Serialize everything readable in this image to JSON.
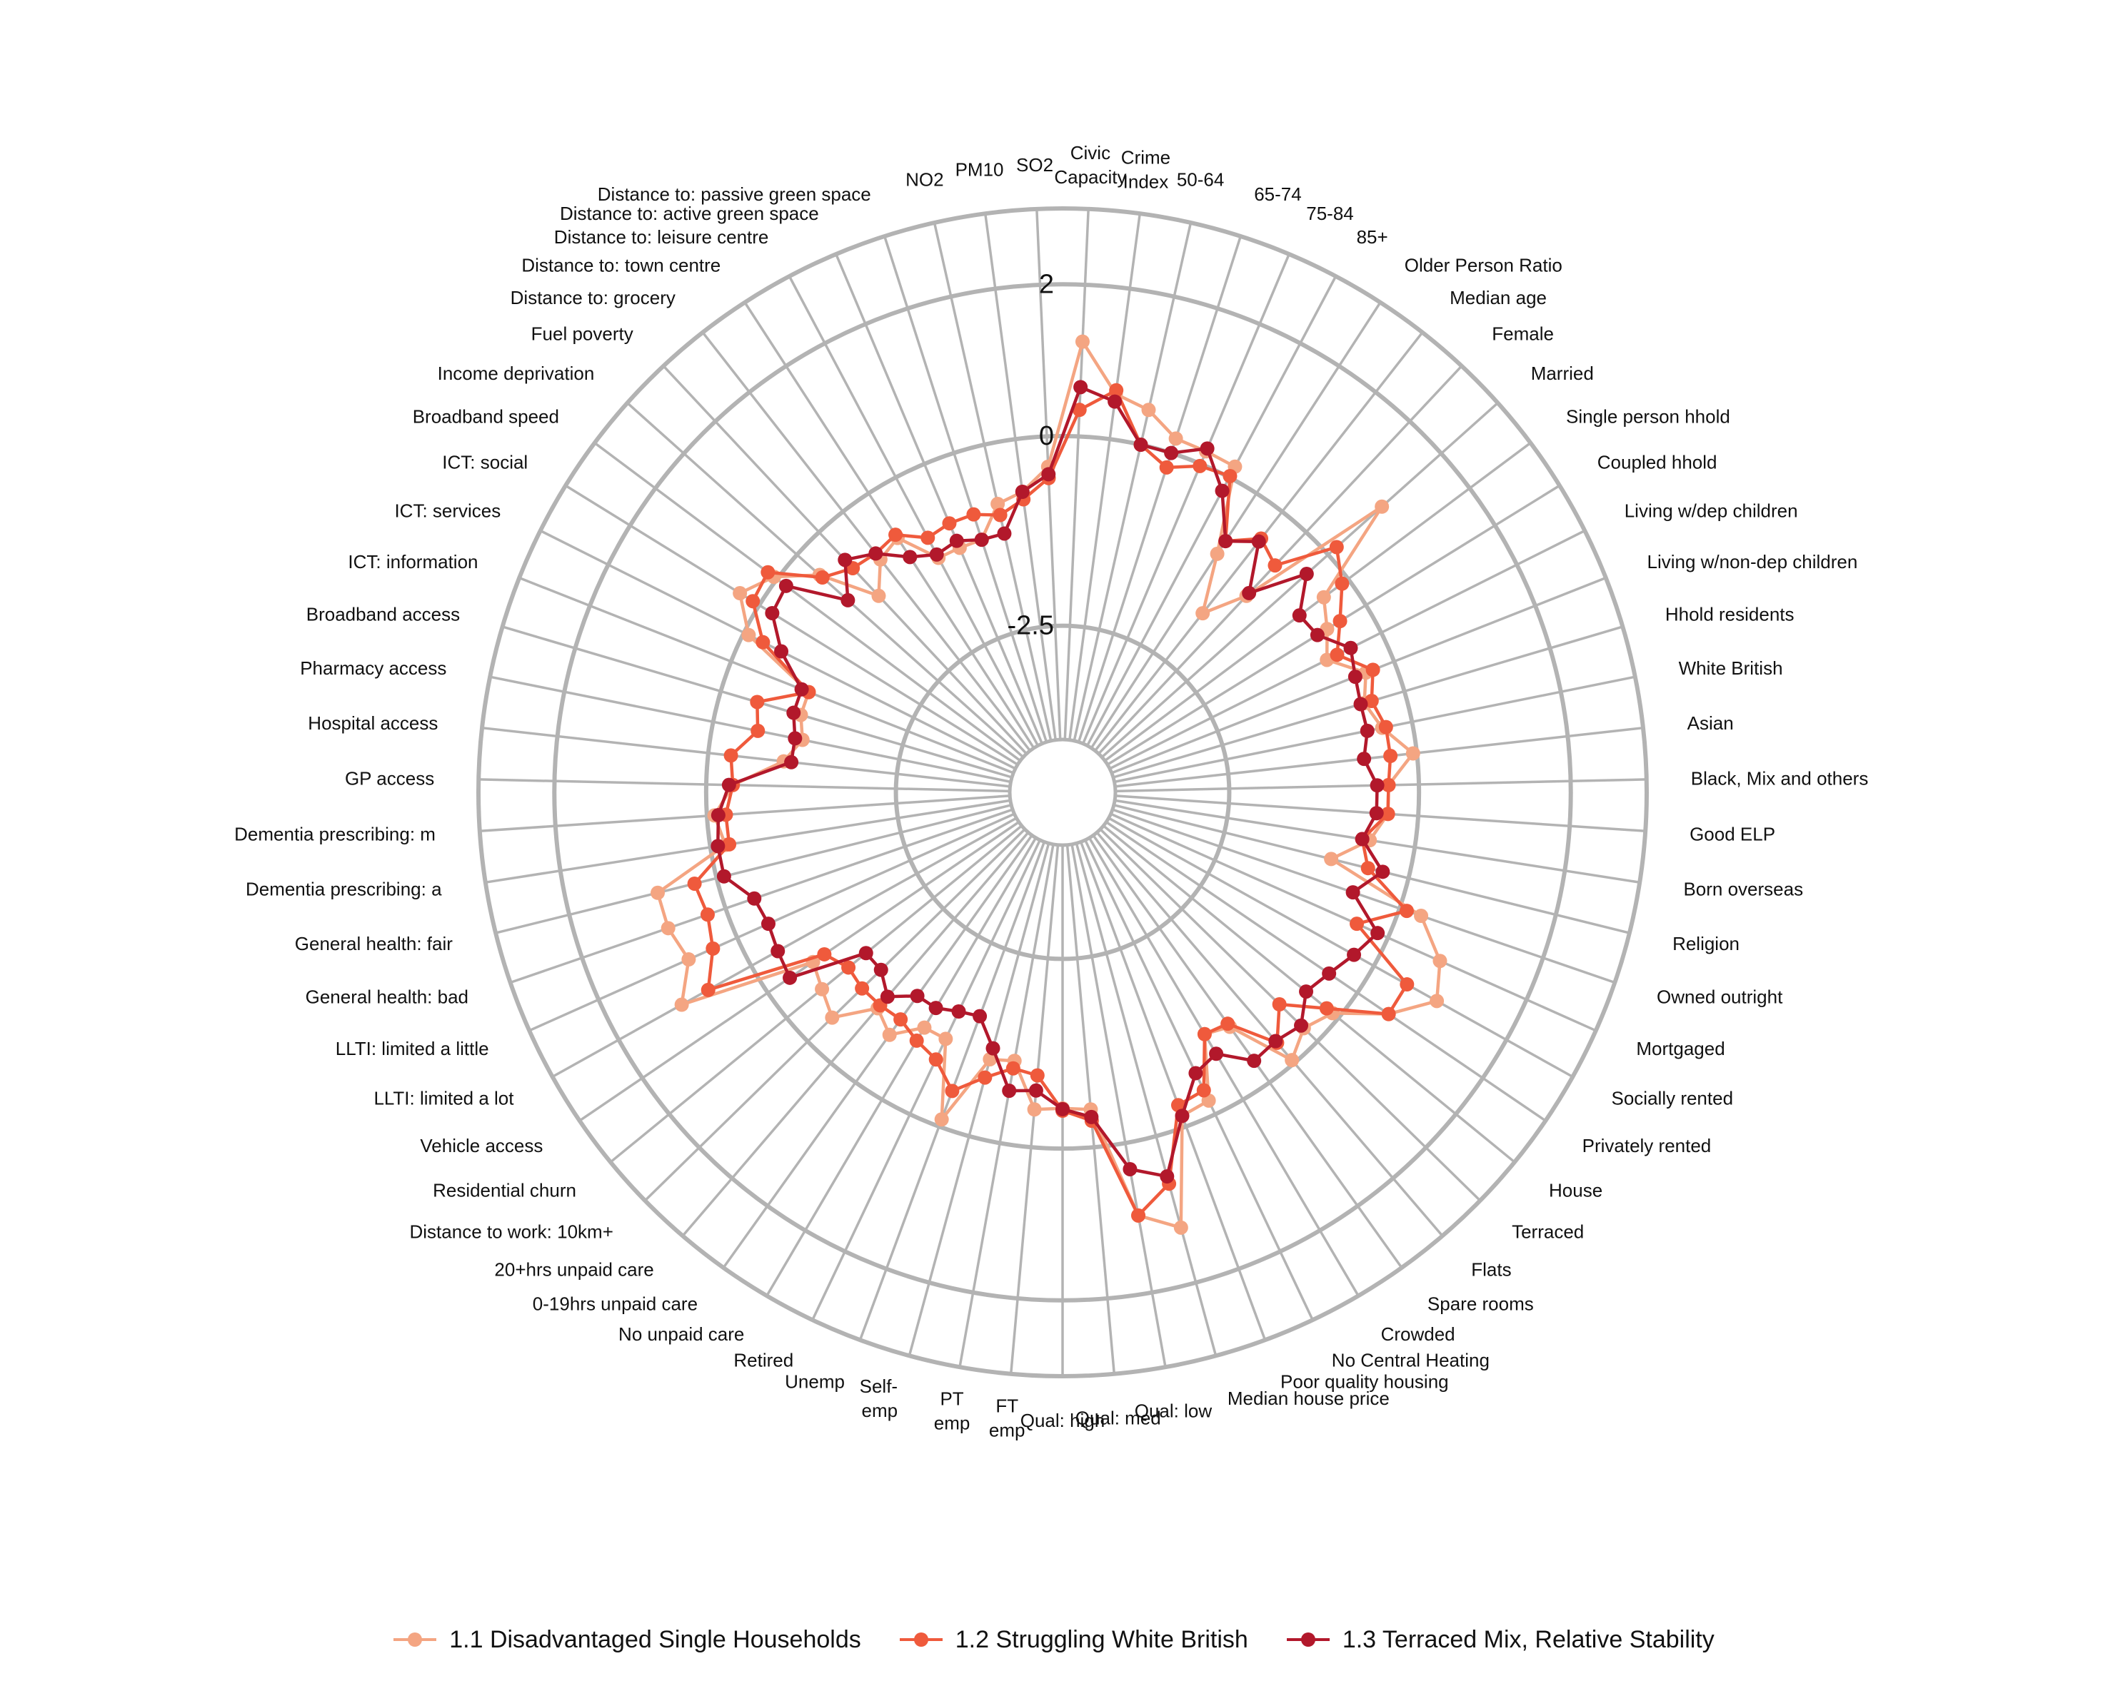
{
  "chart_data": {
    "type": "radar",
    "title": "",
    "rings": [
      {
        "value": 2,
        "label": "2"
      },
      {
        "value": 0,
        "label": "0"
      },
      {
        "value": -2.5,
        "label": "-2.5"
      }
    ],
    "rlim": [
      -4,
      3
    ],
    "grid": true,
    "legend_position": "bottom",
    "categories": [
      [
        "Civic",
        "Capacity"
      ],
      [
        "Crime",
        "Index"
      ],
      [
        "50-64"
      ],
      [
        "65-74"
      ],
      [
        "75-84"
      ],
      [
        "85+"
      ],
      [
        "Older Person Ratio"
      ],
      [
        "Median age"
      ],
      [
        "Female"
      ],
      [
        "Married"
      ],
      [
        "Single person hhold"
      ],
      [
        "Coupled hhold"
      ],
      [
        "Living w/dep children"
      ],
      [
        "Living w/non-dep children"
      ],
      [
        "Hhold residents"
      ],
      [
        "White British"
      ],
      [
        "Asian"
      ],
      [
        "Black, Mix and others"
      ],
      [
        "Good ELP"
      ],
      [
        "Born overseas"
      ],
      [
        "Religion"
      ],
      [
        "Owned outright"
      ],
      [
        "Mortgaged"
      ],
      [
        "Socially rented"
      ],
      [
        "Privately rented"
      ],
      [
        "House"
      ],
      [
        "Terraced"
      ],
      [
        "Flats"
      ],
      [
        "Spare rooms"
      ],
      [
        "Crowded"
      ],
      [
        "No Central Heating"
      ],
      [
        "Poor quality housing"
      ],
      [
        "Median house price"
      ],
      [
        "Qual: low"
      ],
      [
        "Qual: med"
      ],
      [
        "Qual: high"
      ],
      [
        "FT",
        "emp"
      ],
      [
        "PT",
        "emp"
      ],
      [
        "Self-",
        "emp"
      ],
      [
        "Unemp"
      ],
      [
        "Retired"
      ],
      [
        "No unpaid care"
      ],
      [
        "0-19hrs unpaid care"
      ],
      [
        "20+hrs unpaid care"
      ],
      [
        "Distance to work: 10km+"
      ],
      [
        "Residential churn"
      ],
      [
        "Vehicle access"
      ],
      [
        "LLTI: limited a lot"
      ],
      [
        "LLTI: limited a little"
      ],
      [
        "General health: bad"
      ],
      [
        "General health: fair"
      ],
      [
        "Dementia prescribing: a"
      ],
      [
        "Dementia prescribing: m"
      ],
      [
        "GP access"
      ],
      [
        "Hospital access"
      ],
      [
        "Pharmacy access"
      ],
      [
        "Broadband access"
      ],
      [
        "ICT: information"
      ],
      [
        "ICT: services"
      ],
      [
        "ICT: social"
      ],
      [
        "Broadband speed"
      ],
      [
        "Income deprivation"
      ],
      [
        "Fuel poverty"
      ],
      [
        "Distance to: grocery"
      ],
      [
        "Distance to: town centre"
      ],
      [
        "Distance to: leisure centre"
      ],
      [
        "Distance to: active green space"
      ],
      [
        "Distance to: passive green space"
      ],
      [
        "NO2"
      ],
      [
        "PM10"
      ],
      [
        "SO2"
      ]
    ],
    "series": [
      {
        "name": "1.1 Disadvantaged Single Households",
        "color": "#f4a582",
        "values": [
          1.25,
          0.6,
          0.47,
          0.2,
          0.18,
          0.16,
          -0.95,
          -1.7,
          -1.15,
          0.95,
          -0.4,
          -0.6,
          -0.8,
          -0.4,
          -0.55,
          -0.4,
          -0.05,
          -0.4,
          -0.4,
          -0.6,
          -1.05,
          0.3,
          0.75,
          0.95,
          0.5,
          -0.1,
          -0.25,
          -0.05,
          -0.9,
          -1.0,
          -0.2,
          -0.15,
          1.25,
          0.97,
          -0.5,
          -0.53,
          -0.5,
          -1.1,
          -1.05,
          -0.1,
          -1.1,
          -1.1,
          -0.77,
          -0.95,
          -0.45,
          -0.6,
          -0.72,
          1.05,
          0.7,
          0.8,
          0.8,
          -0.2,
          -0.1,
          -0.35,
          -1.0,
          -1.2,
          -1.1,
          -1.1,
          -0.07,
          0.3,
          0.05,
          -0.4,
          -1.15,
          -0.8,
          -0.7,
          -1.2,
          -1.2,
          -1.2,
          -0.8,
          -0.7,
          -0.4
        ]
      },
      {
        "name": "1.2 Struggling White British",
        "color": "#ef5a3c",
        "values": [
          0.35,
          0.65,
          0.0,
          -0.2,
          -0.03,
          0.02,
          -0.75,
          -0.45,
          -0.6,
          0.15,
          -0.1,
          -0.4,
          -0.65,
          -0.3,
          -0.45,
          -0.35,
          -0.35,
          -0.4,
          -0.4,
          -0.7,
          -0.55,
          0.1,
          -0.45,
          0.5,
          0.5,
          -0.2,
          -0.7,
          -0.35,
          -0.95,
          -1.0,
          -0.35,
          -0.3,
          0.65,
          0.97,
          -0.35,
          -0.5,
          -0.95,
          -1.0,
          -0.8,
          -0.5,
          -0.8,
          -0.9,
          -1.02,
          -1.0,
          -1.0,
          -1.05,
          -0.9,
          0.65,
          0.35,
          0.25,
          0.3,
          -0.25,
          -0.25,
          -0.35,
          -0.3,
          -0.6,
          -0.5,
          -1.1,
          -0.28,
          0.1,
          0.15,
          -0.45,
          -0.65,
          -0.7,
          -0.65,
          -0.9,
          -0.85,
          -0.85,
          -0.95,
          -0.8,
          -0.55
        ]
      },
      {
        "name": "1.3 Terraced Mix, Relative Stability",
        "color": "#b2182b",
        "values": [
          0.65,
          0.5,
          0.0,
          0.0,
          0.22,
          -0.2,
          -0.75,
          -0.5,
          -1.1,
          -0.38,
          -0.8,
          -0.75,
          -0.45,
          -0.55,
          -0.6,
          -0.6,
          -0.7,
          -0.55,
          -0.55,
          -0.7,
          -0.35,
          -0.65,
          -0.15,
          -0.3,
          -0.45,
          -0.55,
          -0.3,
          -0.38,
          -0.35,
          -0.7,
          -0.6,
          -0.15,
          0.55,
          0.35,
          -0.4,
          -0.52,
          -0.75,
          -0.7,
          -1.2,
          -1.55,
          -1.5,
          -1.4,
          -1.4,
          -1.15,
          -1.35,
          -1.35,
          -0.35,
          -0.4,
          -0.45,
          -0.4,
          -0.1,
          -0.1,
          -0.15,
          -0.3,
          -1.1,
          -1.1,
          -1.0,
          -1.0,
          -0.55,
          -0.2,
          -0.15,
          -0.9,
          -0.5,
          -0.7,
          -1.0,
          -1.15,
          -1.1,
          -1.2,
          -1.2,
          -0.7,
          -0.5
        ]
      }
    ]
  }
}
